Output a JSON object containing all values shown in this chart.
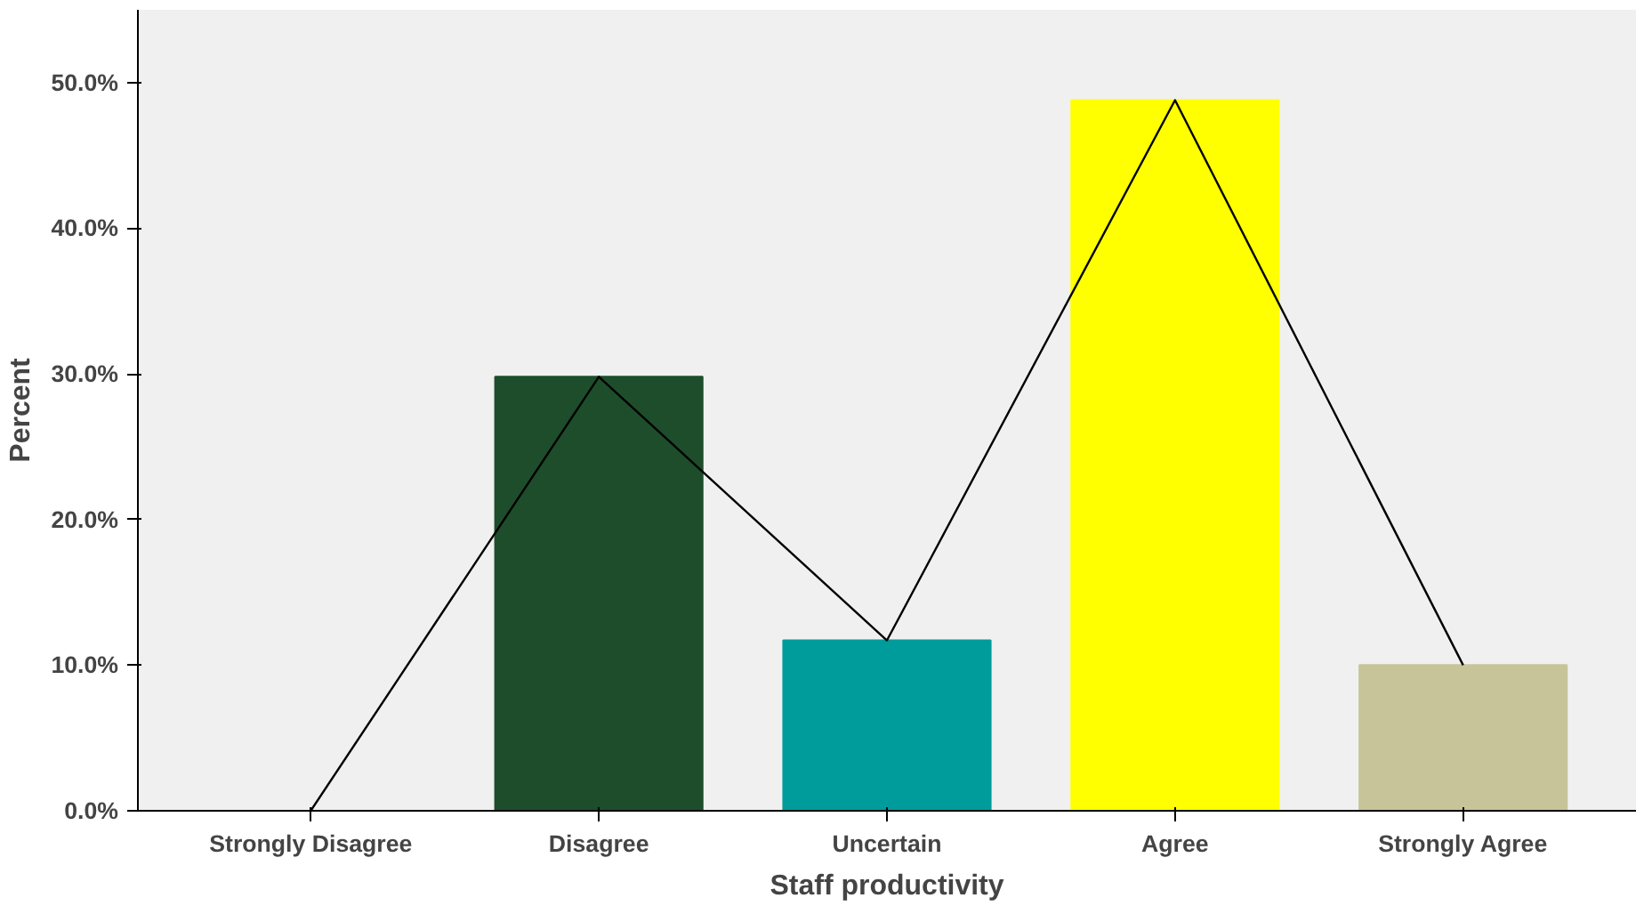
{
  "chart_data": {
    "type": "bar",
    "xlabel": "Staff productivity",
    "ylabel": "Percent",
    "categories": [
      "Strongly Disagree",
      "Disagree",
      "Uncertain",
      "Agree",
      "Strongly Agree"
    ],
    "series": [
      {
        "colors": [
          "#808080",
          "#1e4d2b",
          "#009c9c",
          "#ffff00",
          "#c8c49a"
        ],
        "values": [
          0,
          29.8,
          11.7,
          48.8,
          10.0
        ]
      },
      {
        "type": "line",
        "color": "#000000",
        "values": [
          0,
          29.8,
          11.7,
          48.8,
          10.0
        ]
      }
    ],
    "ylim": [
      0,
      55
    ],
    "yticks": [
      {
        "value": 0,
        "label": "0.0%"
      },
      {
        "value": 10,
        "label": "10.0%"
      },
      {
        "value": 20,
        "label": "20.0%"
      },
      {
        "value": 30,
        "label": "30.0%"
      },
      {
        "value": 40,
        "label": "40.0%"
      },
      {
        "value": 50,
        "label": "50.0%"
      }
    ],
    "grid": false
  }
}
